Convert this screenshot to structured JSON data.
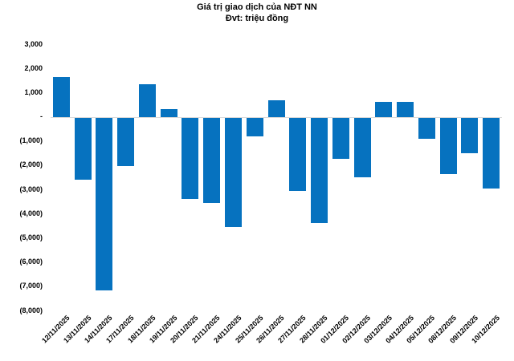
{
  "chart_data": {
    "type": "bar",
    "title": "Giá trị giao dịch của NĐT NN",
    "subtitle": "Đvt: triệu đồng",
    "categories": [
      "12/11/2025",
      "13/11/2025",
      "14/11/2025",
      "17/11/2025",
      "18/11/2025",
      "19/11/2025",
      "20/11/2025",
      "21/11/2025",
      "24/11/2025",
      "25/11/2025",
      "26/11/2025",
      "27/11/2025",
      "28/11/2025",
      "01/12/2025",
      "02/12/2025",
      "03/12/2025",
      "04/12/2025",
      "05/12/2025",
      "08/12/2025",
      "09/12/2025",
      "10/12/2025"
    ],
    "values": [
      1640,
      -2570,
      -7150,
      -2020,
      1330,
      310,
      -3370,
      -3530,
      -4530,
      -770,
      690,
      -3020,
      -4360,
      -1710,
      -2460,
      630,
      620,
      -880,
      -2350,
      -1470,
      -2930
    ],
    "ylim": [
      -8000,
      3000
    ],
    "ytick_step": 1000,
    "ytick_labels": [
      "3,000",
      "2,000",
      "1,000",
      "-",
      "(1,000)",
      "(2,000)",
      "(3,000)",
      "(4,000)",
      "(5,000)",
      "(6,000)",
      "(7,000)",
      "(8,000)"
    ],
    "bar_color": "#0672bf",
    "axis_line_color": "#d9d9d9",
    "grid": false,
    "legend": "none"
  }
}
